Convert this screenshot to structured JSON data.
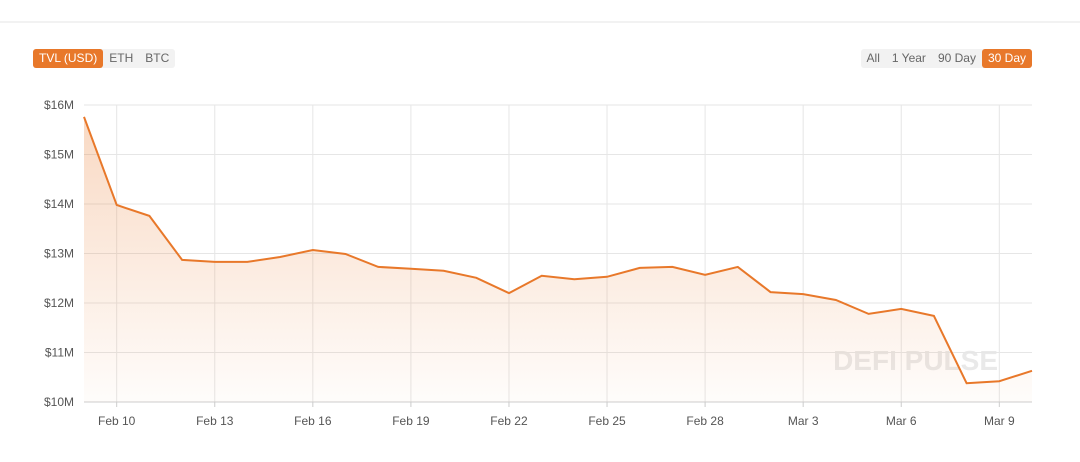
{
  "chart_data": {
    "type": "area",
    "currency_options": [
      "TVL (USD)",
      "ETH",
      "BTC"
    ],
    "active_currency": 0,
    "range_options": [
      "All",
      "1 Year",
      "90 Day",
      "30 Day"
    ],
    "active_range": 3,
    "watermark": "DEFI PULSE",
    "color": "#e8782a",
    "grid": true,
    "categories": [
      null,
      "Feb 10",
      null,
      null,
      "Feb 13",
      null,
      null,
      "Feb 16",
      null,
      null,
      "Feb 19",
      null,
      null,
      "Feb 22",
      null,
      null,
      "Feb 25",
      null,
      null,
      "Feb 28",
      null,
      null,
      "Mar 3",
      null,
      null,
      "Mar 6",
      null,
      null,
      "Mar 9",
      null
    ],
    "values": [
      15.76,
      13.98,
      13.76,
      12.87,
      12.83,
      12.83,
      12.93,
      13.07,
      12.99,
      12.73,
      12.69,
      12.65,
      12.51,
      12.2,
      12.55,
      12.48,
      12.53,
      12.71,
      12.73,
      12.57,
      12.73,
      12.22,
      12.18,
      12.06,
      11.78,
      11.88,
      11.74,
      10.38,
      10.42,
      10.63
    ],
    "ylim": [
      10,
      16
    ],
    "yticks": [
      {
        "value": 10,
        "label": "$10M"
      },
      {
        "value": 11,
        "label": "$11M"
      },
      {
        "value": 12,
        "label": "$12M"
      },
      {
        "value": 13,
        "label": "$13M"
      },
      {
        "value": 14,
        "label": "$14M"
      },
      {
        "value": 15,
        "label": "$15M"
      },
      {
        "value": 16,
        "label": "$16M"
      }
    ]
  }
}
